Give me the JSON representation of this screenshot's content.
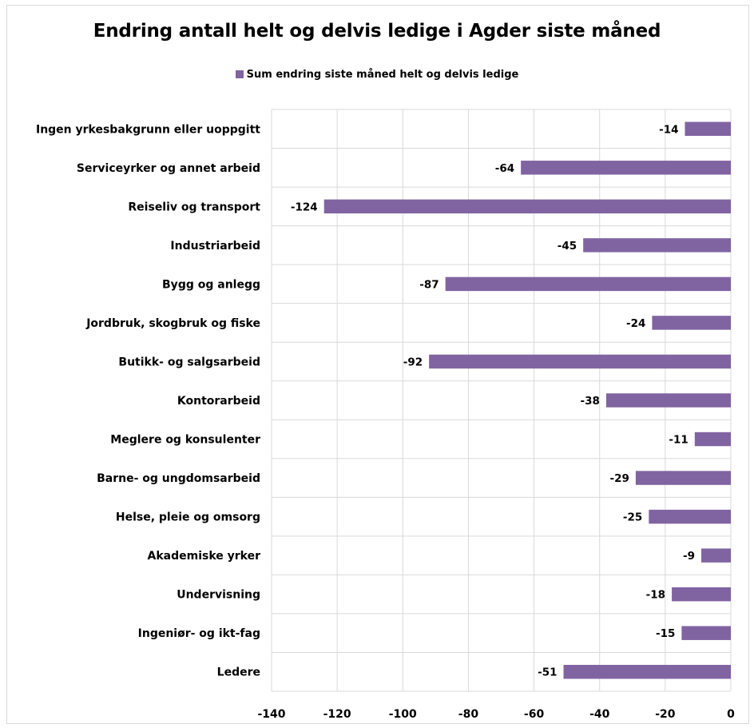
{
  "chart_data": {
    "type": "bar",
    "orientation": "horizontal",
    "title": "Endring antall helt og delvis ledige i Agder siste måned",
    "legend_position": "top",
    "bar_color": "#8064a2",
    "grid": true,
    "categories": [
      "Ingen yrkesbakgrunn eller uoppgitt",
      "Serviceyrker og annet arbeid",
      "Reiseliv og transport",
      "Industriarbeid",
      "Bygg og anlegg",
      "Jordbruk, skogbruk og fiske",
      "Butikk- og salgsarbeid",
      "Kontorarbeid",
      "Meglere og konsulenter",
      "Barne- og ungdomsarbeid",
      "Helse, pleie og omsorg",
      "Akademiske yrker",
      "Undervisning",
      "Ingeniør- og ikt-fag",
      "Ledere"
    ],
    "series": [
      {
        "name": "Sum endring siste måned helt og delvis ledige",
        "values": [
          -14,
          -64,
          -124,
          -45,
          -87,
          -24,
          -92,
          -38,
          -11,
          -29,
          -25,
          -9,
          -18,
          -15,
          -51
        ]
      }
    ],
    "xlim": [
      -140,
      0
    ],
    "xticks": [
      -140,
      -120,
      -100,
      -80,
      -60,
      -40,
      -20,
      0
    ]
  }
}
